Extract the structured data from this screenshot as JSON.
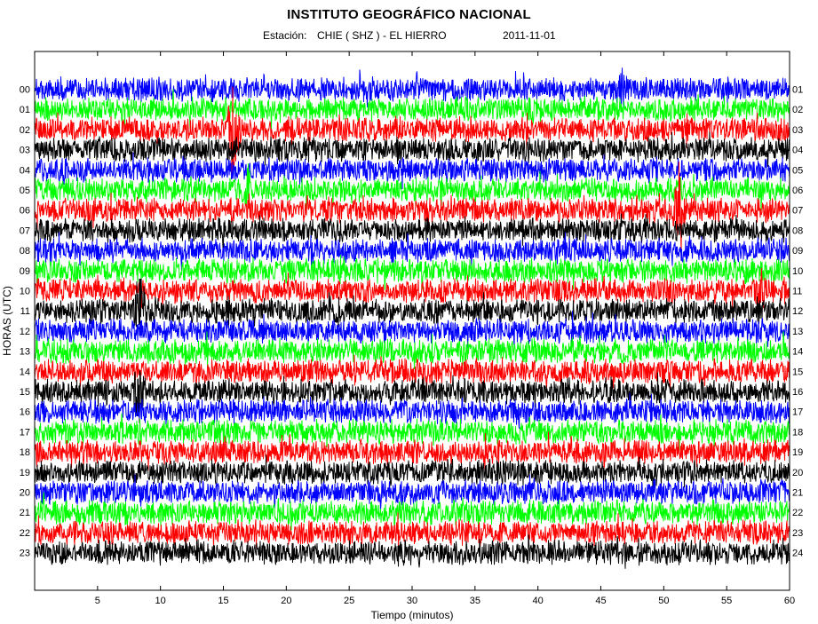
{
  "header": {
    "title": "INSTITUTO GEOGRÁFICO NACIONAL",
    "station_label": "Estación:",
    "station_value": "CHIE ( SHZ ) - EL HIERRO",
    "date": "2011-11-01"
  },
  "chart_data": {
    "type": "line",
    "xlabel": "Tiempo (minutos)",
    "ylabel": "HORAS (UTC)",
    "xlim": [
      0,
      60
    ],
    "x_ticks": [
      5,
      10,
      15,
      20,
      25,
      30,
      35,
      40,
      45,
      50,
      55,
      60
    ],
    "left_tick_labels": [
      "00",
      "01",
      "02",
      "03",
      "04",
      "05",
      "06",
      "07",
      "08",
      "09",
      "10",
      "11",
      "12",
      "13",
      "14",
      "15",
      "16",
      "17",
      "18",
      "19",
      "20",
      "21",
      "22",
      "23"
    ],
    "right_tick_labels": [
      "01",
      "02",
      "03",
      "04",
      "05",
      "06",
      "07",
      "08",
      "09",
      "10",
      "11",
      "12",
      "13",
      "14",
      "15",
      "16",
      "17",
      "18",
      "19",
      "20",
      "21",
      "22",
      "23",
      "24"
    ],
    "trace_colors": [
      "#0000ff",
      "#00ff00",
      "#ff0000",
      "#000000"
    ],
    "grid": false,
    "events": [
      {
        "hour": 2,
        "minute": 15.8,
        "amplitude": 2.6
      },
      {
        "hour": 5,
        "minute": 16.9,
        "amplitude": 1.0
      },
      {
        "hour": 6,
        "minute": 51.2,
        "amplitude": 2.2
      },
      {
        "hour": 11,
        "minute": 8.4,
        "amplitude": 2.4
      },
      {
        "hour": 15,
        "minute": 8.3,
        "amplitude": 1.8
      },
      {
        "hour": 0,
        "minute": 46.6,
        "amplitude": 1.2
      },
      {
        "hour": 10,
        "minute": 57.6,
        "amplitude": 0.8
      }
    ]
  }
}
